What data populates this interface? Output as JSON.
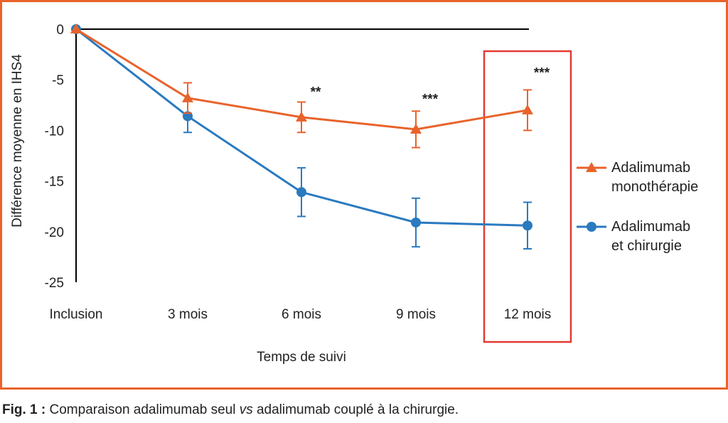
{
  "colors": {
    "frame": "#e8632b",
    "highlight": "#e53935",
    "axis": "#000000",
    "text": "#222222"
  },
  "caption": {
    "label": "Fig. 1 :",
    "text_before": "Comparaison adalimumab seul ",
    "text_italic": "vs",
    "text_after": " adalimumab couplé à la chirurgie."
  },
  "chart_data": {
    "type": "line",
    "ylabel": "Différence moyenne en IHS4",
    "xlabel": "Temps de suivi",
    "categories": [
      "Inclusion",
      "3 mois",
      "6 mois",
      "9 mois",
      "12 mois"
    ],
    "ylim": [
      -25,
      0
    ],
    "yticks": [
      0,
      -5,
      -10,
      -15,
      -20,
      -25
    ],
    "grid": false,
    "legend_position": "right",
    "highlighted_category": "12 mois",
    "series": [
      {
        "name": "Adalimumab monothérapie",
        "legend_lines": [
          "Adalimumab",
          "monothérapie"
        ],
        "color": "#e8632b",
        "marker": "triangle",
        "values": [
          0,
          -6.8,
          -8.7,
          -9.9,
          -8.0
        ],
        "err": [
          0,
          1.5,
          1.5,
          1.8,
          2.0
        ]
      },
      {
        "name": "Adalimumab et chirurgie",
        "legend_lines": [
          "Adalimumab",
          "et chirurgie"
        ],
        "color": "#2a7abf",
        "marker": "circle",
        "values": [
          0,
          -8.6,
          -16.1,
          -19.1,
          -19.4
        ],
        "err": [
          0,
          1.6,
          2.4,
          2.4,
          2.3
        ]
      }
    ],
    "annotations": [
      {
        "category": "6 mois",
        "text": "**",
        "y": -6.5
      },
      {
        "category": "9 mois",
        "text": "***",
        "y": -7.2
      },
      {
        "category": "12 mois",
        "text": "***",
        "y": -4.6
      }
    ]
  }
}
